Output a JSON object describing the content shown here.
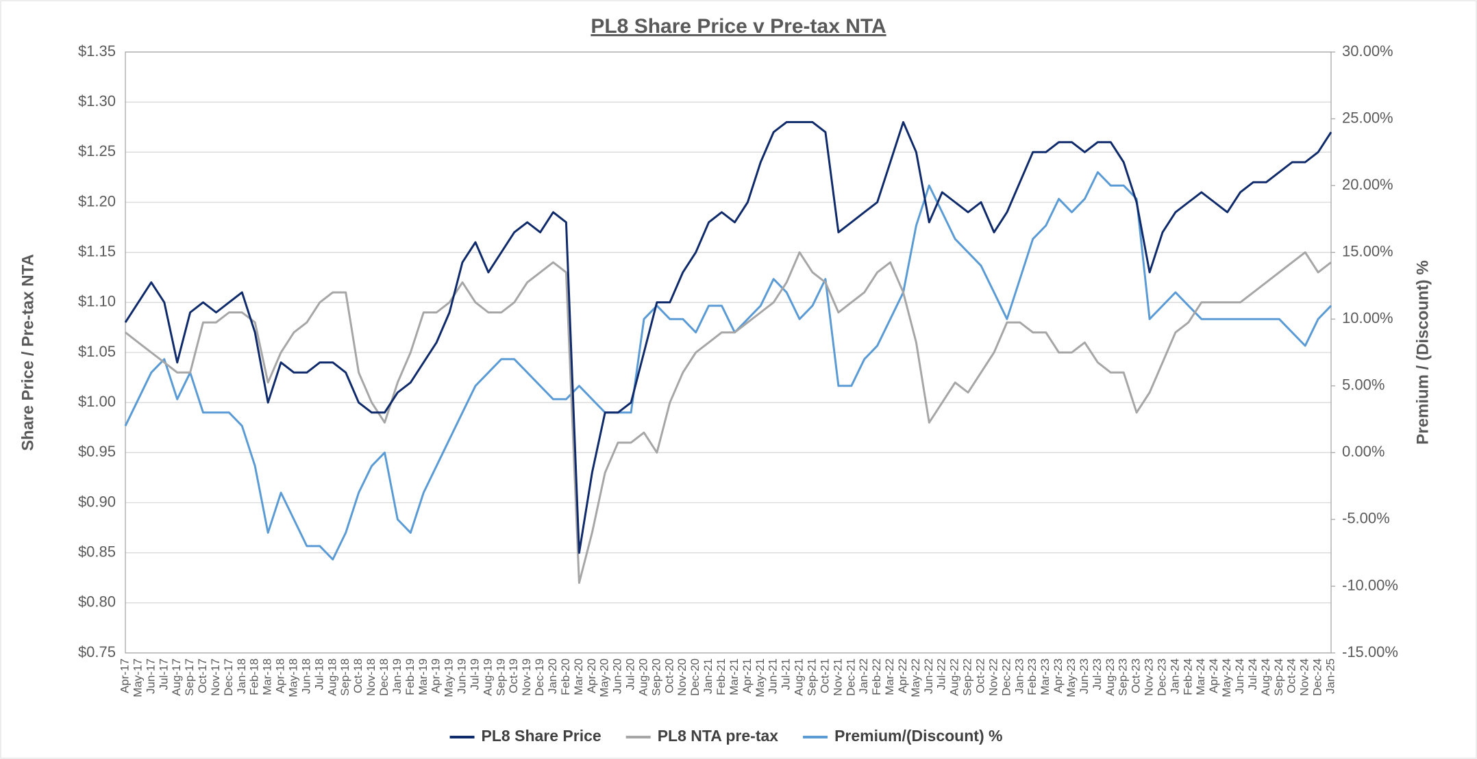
{
  "chart_data": {
    "type": "line",
    "title": "PL8 Share Price v Pre-tax NTA",
    "y_label": "Share Price / Pre-tax NTA",
    "y2_label": "Premium / (Discount) %",
    "categories": [
      "Apr-17",
      "May-17",
      "Jun-17",
      "Jul-17",
      "Aug-17",
      "Sep-17",
      "Oct-17",
      "Nov-17",
      "Dec-17",
      "Jan-18",
      "Feb-18",
      "Mar-18",
      "Apr-18",
      "May-18",
      "Jun-18",
      "Jul-18",
      "Aug-18",
      "Sep-18",
      "Oct-18",
      "Nov-18",
      "Dec-18",
      "Jan-19",
      "Feb-19",
      "Mar-19",
      "Apr-19",
      "May-19",
      "Jun-19",
      "Jul-19",
      "Aug-19",
      "Sep-19",
      "Oct-19",
      "Nov-19",
      "Dec-19",
      "Jan-20",
      "Feb-20",
      "Mar-20",
      "Apr-20",
      "May-20",
      "Jun-20",
      "Jul-20",
      "Aug-20",
      "Sep-20",
      "Oct-20",
      "Nov-20",
      "Dec-20",
      "Jan-21",
      "Feb-21",
      "Mar-21",
      "Apr-21",
      "May-21",
      "Jun-21",
      "Jul-21",
      "Aug-21",
      "Sep-21",
      "Oct-21",
      "Nov-21",
      "Dec-21",
      "Jan-22",
      "Feb-22",
      "Mar-22",
      "Apr-22",
      "May-22",
      "Jun-22",
      "Jul-22",
      "Aug-22",
      "Sep-22",
      "Oct-22",
      "Nov-22",
      "Dec-22",
      "Jan-23",
      "Feb-23",
      "Mar-23",
      "Apr-23",
      "May-23",
      "Jun-23",
      "Jul-23",
      "Aug-23",
      "Sep-23",
      "Oct-23",
      "Nov-23",
      "Dec-23",
      "Jan-24",
      "Feb-24",
      "Mar-24",
      "Apr-24",
      "May-24",
      "Jun-24",
      "Jul-24",
      "Aug-24",
      "Sep-24",
      "Oct-24",
      "Nov-24",
      "Dec-24",
      "Jan-25"
    ],
    "series": [
      {
        "name": "PL8 Share Price",
        "color": "#0f2a6b",
        "values": [
          1.08,
          1.1,
          1.12,
          1.1,
          1.04,
          1.09,
          1.1,
          1.09,
          1.1,
          1.11,
          1.07,
          1.0,
          1.04,
          1.03,
          1.03,
          1.04,
          1.04,
          1.03,
          1.0,
          0.99,
          0.99,
          1.01,
          1.02,
          1.04,
          1.06,
          1.09,
          1.14,
          1.16,
          1.13,
          1.15,
          1.17,
          1.18,
          1.17,
          1.19,
          1.18,
          0.85,
          0.93,
          0.99,
          0.99,
          1.0,
          1.05,
          1.1,
          1.1,
          1.13,
          1.15,
          1.18,
          1.19,
          1.18,
          1.2,
          1.24,
          1.27,
          1.28,
          1.28,
          1.28,
          1.27,
          1.17,
          1.18,
          1.19,
          1.2,
          1.24,
          1.28,
          1.25,
          1.18,
          1.21,
          1.2,
          1.19,
          1.2,
          1.17,
          1.19,
          1.22,
          1.25,
          1.25,
          1.26,
          1.26,
          1.25,
          1.26,
          1.26,
          1.24,
          1.2,
          1.13,
          1.17,
          1.19,
          1.2,
          1.21,
          1.2,
          1.19,
          1.21,
          1.22,
          1.22,
          1.23,
          1.24,
          1.24,
          1.25,
          1.27
        ]
      },
      {
        "name": "PL8 NTA pre-tax",
        "color": "#a6a6a6",
        "values": [
          1.07,
          1.06,
          1.05,
          1.04,
          1.03,
          1.03,
          1.08,
          1.08,
          1.09,
          1.09,
          1.08,
          1.02,
          1.05,
          1.07,
          1.08,
          1.1,
          1.11,
          1.11,
          1.03,
          1.0,
          0.98,
          1.02,
          1.05,
          1.09,
          1.09,
          1.1,
          1.12,
          1.1,
          1.09,
          1.09,
          1.1,
          1.12,
          1.13,
          1.14,
          1.13,
          0.82,
          0.87,
          0.93,
          0.96,
          0.96,
          0.97,
          0.95,
          1.0,
          1.03,
          1.05,
          1.06,
          1.07,
          1.07,
          1.08,
          1.09,
          1.1,
          1.12,
          1.15,
          1.13,
          1.12,
          1.09,
          1.1,
          1.11,
          1.13,
          1.14,
          1.11,
          1.06,
          0.98,
          1.0,
          1.02,
          1.01,
          1.03,
          1.05,
          1.08,
          1.08,
          1.07,
          1.07,
          1.05,
          1.05,
          1.06,
          1.04,
          1.03,
          1.03,
          0.99,
          1.01,
          1.04,
          1.07,
          1.08,
          1.1,
          1.1,
          1.1,
          1.1,
          1.11,
          1.12,
          1.13,
          1.14,
          1.15,
          1.13,
          1.14
        ]
      },
      {
        "name": "Premium/(Discount) %",
        "color": "#5b9bd5",
        "axis": "y2",
        "values": [
          2,
          4,
          6,
          7,
          4,
          6,
          3,
          3,
          3,
          2,
          -1,
          -6,
          -3,
          -5,
          -7,
          -7,
          -8,
          -6,
          -3,
          -1,
          0,
          -5,
          -6,
          -3,
          -1,
          1,
          3,
          5,
          6,
          7,
          7,
          6,
          5,
          4,
          4,
          5,
          4,
          3,
          3,
          3,
          10,
          11,
          10,
          10,
          9,
          11,
          11,
          9,
          10,
          11,
          13,
          12,
          10,
          11,
          13,
          5,
          5,
          7,
          8,
          10,
          12,
          17,
          20,
          18,
          16,
          15,
          14,
          12,
          10,
          13,
          16,
          17,
          19,
          18,
          19,
          21,
          20,
          20,
          19,
          10,
          11,
          12,
          11,
          10,
          10,
          10,
          10,
          10,
          10,
          10,
          9,
          8,
          10,
          11
        ]
      }
    ],
    "ylim": [
      0.75,
      1.35
    ],
    "yticks": [
      {
        "value": 0.75,
        "label": "$0.75"
      },
      {
        "value": 0.8,
        "label": "$0.80"
      },
      {
        "value": 0.85,
        "label": "$0.85"
      },
      {
        "value": 0.9,
        "label": "$0.90"
      },
      {
        "value": 0.95,
        "label": "$0.95"
      },
      {
        "value": 1.0,
        "label": "$1.00"
      },
      {
        "value": 1.05,
        "label": "$1.05"
      },
      {
        "value": 1.1,
        "label": "$1.10"
      },
      {
        "value": 1.15,
        "label": "$1.15"
      },
      {
        "value": 1.2,
        "label": "$1.20"
      },
      {
        "value": 1.25,
        "label": "$1.25"
      },
      {
        "value": 1.3,
        "label": "$1.30"
      },
      {
        "value": 1.35,
        "label": "$1.35"
      }
    ],
    "y2lim": [
      -15,
      30
    ],
    "y2ticks": [
      {
        "value": -15,
        "label": "-15.00%"
      },
      {
        "value": -10,
        "label": "-10.00%"
      },
      {
        "value": -5,
        "label": "-5.00%"
      },
      {
        "value": 0,
        "label": "0.00%"
      },
      {
        "value": 5,
        "label": "5.00%"
      },
      {
        "value": 10,
        "label": "10.00%"
      },
      {
        "value": 15,
        "label": "15.00%"
      },
      {
        "value": 20,
        "label": "20.00%"
      },
      {
        "value": 25,
        "label": "25.00%"
      },
      {
        "value": 30,
        "label": "30.00%"
      }
    ],
    "grid": true,
    "legend": "bottom"
  }
}
